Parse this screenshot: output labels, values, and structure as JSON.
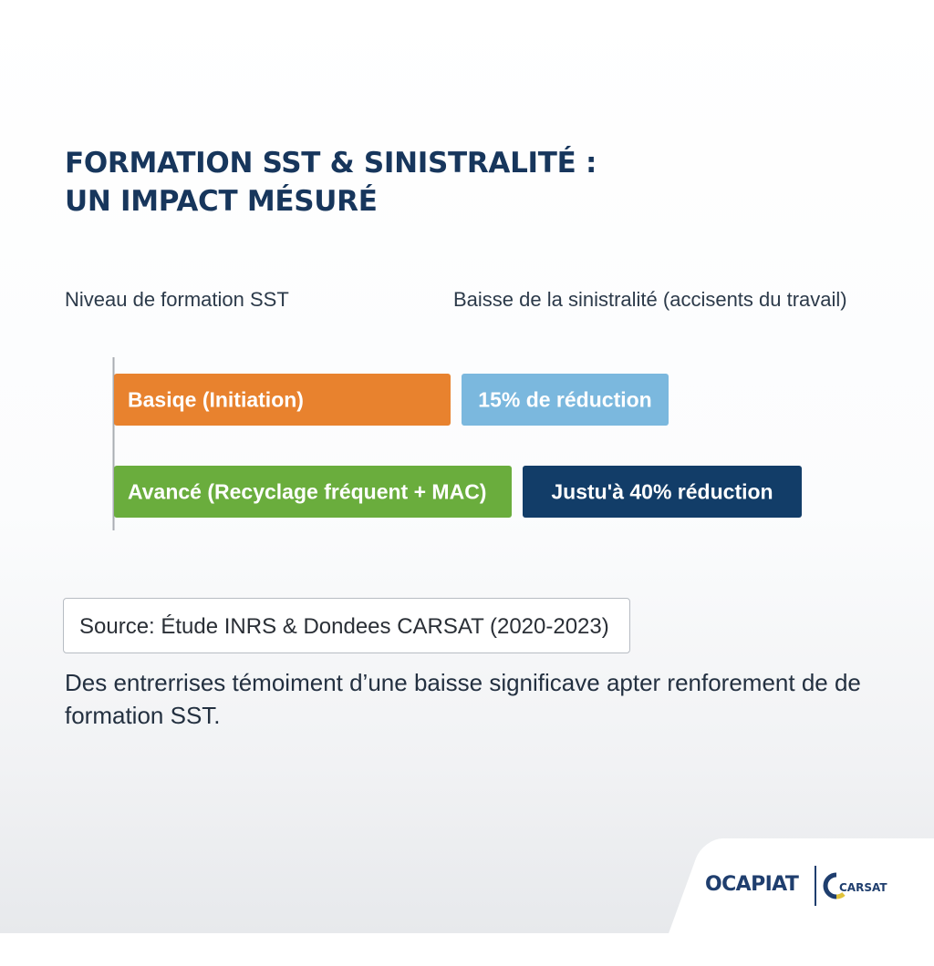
{
  "header": {
    "title_line1": "FORMATION SST & SINISTRALITÉ :",
    "title_line2": "UN IMPACT MÉSURÉ"
  },
  "chart_data": {
    "type": "table",
    "columns": [
      "Niveau de formation SST",
      "Baisse de la sinistralité (accisents du travail)"
    ],
    "rows": [
      {
        "level": "Basiqe (Initiation)",
        "result": "15% de réduction",
        "reduction_percent": 15,
        "level_color": "#e8822e",
        "result_color": "#7bb8de"
      },
      {
        "level": "Avancé (Recyclage fréquent + MAC)",
        "result": "Justu'à 40% réduction",
        "reduction_percent": 40,
        "level_color": "#6aad3d",
        "result_color": "#123d68"
      }
    ]
  },
  "source": {
    "text": "Source: Étude INRS & Dondees CARSAT (2020-2023)"
  },
  "note": {
    "text": "Des entrerrises témoiment d’une baisse significave apter renforement de de formation SST."
  },
  "logos": {
    "ocapiat": "OCAPIAT",
    "carsat": "CARSAT",
    "carsat_color": "#1f3e6e",
    "carsat_accent": "#e0c23a"
  }
}
